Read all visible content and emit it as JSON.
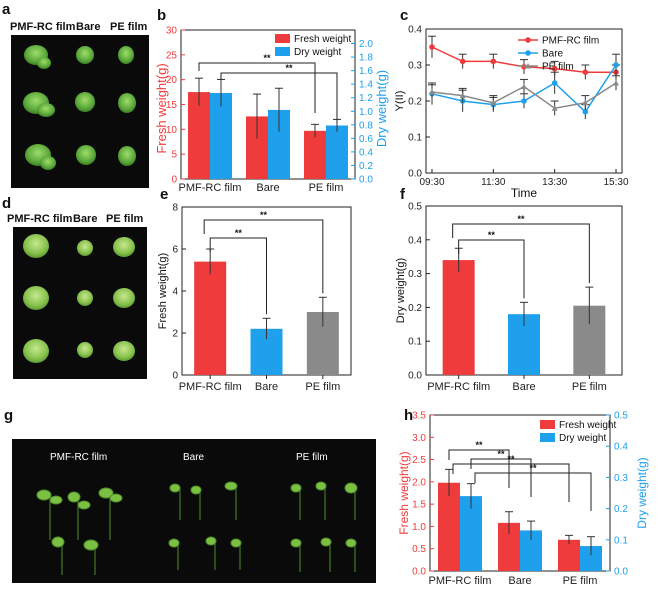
{
  "panels": {
    "a": {
      "letter": "a",
      "labels": [
        "PMF-RC film",
        "Bare",
        "PE film"
      ]
    },
    "d": {
      "letter": "d",
      "labels": [
        "PMF-RC film",
        "Bare",
        "PE film"
      ]
    },
    "g": {
      "letter": "g",
      "labels": [
        "PMF-RC film",
        "Bare",
        "PE film"
      ]
    }
  },
  "colors": {
    "red": "#ef3b3b",
    "blue": "#1ea0ec",
    "gray": "#8a8a8a",
    "axis_blue": "#1ea0ec",
    "axis_red": "#ef3b3b"
  },
  "chart_data": [
    {
      "panel": "b",
      "type": "bar",
      "categories": [
        "PMF-RC film",
        "Bare",
        "PE film"
      ],
      "ylabel": "Fresh weight(g)",
      "y2label": "Dry weight(g)",
      "ylim": [
        0,
        30
      ],
      "y2lim": [
        0,
        2.2
      ],
      "yticks": [
        "0",
        "5",
        "10",
        "15",
        "20",
        "25",
        "30"
      ],
      "y2ticks": [
        "0.0",
        "0.2",
        "0.4",
        "0.6",
        "0.8",
        "1.0",
        "1.2",
        "1.4",
        "1.6",
        "1.8",
        "2.0"
      ],
      "series": [
        {
          "name": "Fresh weight",
          "axis": "left",
          "values": [
            17.5,
            12.6,
            9.7
          ],
          "errors": [
            2.8,
            4.5,
            1.3
          ]
        },
        {
          "name": "Dry weight",
          "axis": "right",
          "values": [
            1.27,
            1.02,
            0.79
          ],
          "errors": [
            0.2,
            0.32,
            0.09
          ]
        }
      ],
      "significance": [
        {
          "from": 0,
          "to": 2,
          "label": "**"
        },
        {
          "from": 0,
          "to": 2,
          "label": "**"
        }
      ]
    },
    {
      "panel": "c",
      "type": "line",
      "x": [
        "09:30",
        "10:30",
        "11:30",
        "12:30",
        "13:30",
        "14:30",
        "15:30"
      ],
      "xticks": [
        "09:30",
        "11:30",
        "13:30",
        "15:30"
      ],
      "xlabel": "Time",
      "ylabel": "Y(II)",
      "ylim": [
        0,
        0.4
      ],
      "yticks": [
        "0.0",
        "0.1",
        "0.2",
        "0.3",
        "0.4"
      ],
      "series": [
        {
          "name": "PMF-RC film",
          "color": "#ef3b3b",
          "values": [
            0.35,
            0.31,
            0.31,
            0.295,
            0.29,
            0.28,
            0.28
          ],
          "errors": [
            0.03,
            0.02,
            0.02,
            0.02,
            0.02,
            0.02,
            0.02
          ]
        },
        {
          "name": "Bare",
          "color": "#1ea0ec",
          "values": [
            0.22,
            0.2,
            0.19,
            0.2,
            0.25,
            0.17,
            0.3
          ],
          "errors": [
            0.03,
            0.03,
            0.02,
            0.02,
            0.03,
            0.02,
            0.03
          ]
        },
        {
          "name": "PE film",
          "color": "#8a8a8a",
          "values": [
            0.225,
            0.215,
            0.195,
            0.24,
            0.18,
            0.195,
            0.25
          ],
          "errors": [
            0.02,
            0.02,
            0.02,
            0.02,
            0.02,
            0.02,
            0.02
          ]
        }
      ]
    },
    {
      "panel": "e",
      "type": "bar",
      "categories": [
        "PMF-RC film",
        "Bare",
        "PE film"
      ],
      "ylabel": "Fresh weight(g)",
      "ylim": [
        0,
        8
      ],
      "yticks": [
        "0",
        "2",
        "4",
        "6",
        "8"
      ],
      "series": [
        {
          "name": "Fresh weight",
          "values": [
            5.4,
            2.2,
            3.0
          ],
          "errors": [
            0.6,
            0.5,
            0.7
          ],
          "colors": [
            "#ef3b3b",
            "#1ea0ec",
            "#8a8a8a"
          ]
        }
      ],
      "significance": [
        {
          "from": 0,
          "to": 1,
          "label": "**"
        },
        {
          "from": 0,
          "to": 2,
          "label": "**"
        }
      ]
    },
    {
      "panel": "f",
      "type": "bar",
      "categories": [
        "PMF-RC film",
        "Bare",
        "PE film"
      ],
      "ylabel": "Dry weight(g)",
      "ylim": [
        0,
        0.5
      ],
      "yticks": [
        "0.0",
        "0.1",
        "0.2",
        "0.3",
        "0.4",
        "0.5"
      ],
      "series": [
        {
          "name": "Dry weight",
          "values": [
            0.34,
            0.18,
            0.205
          ],
          "errors": [
            0.035,
            0.035,
            0.055
          ],
          "colors": [
            "#ef3b3b",
            "#1ea0ec",
            "#8a8a8a"
          ]
        }
      ],
      "significance": [
        {
          "from": 0,
          "to": 1,
          "label": "**"
        },
        {
          "from": 0,
          "to": 2,
          "label": "**"
        }
      ]
    },
    {
      "panel": "h",
      "type": "bar",
      "categories": [
        "PMF-RC film",
        "Bare",
        "PE film"
      ],
      "ylabel": "Fresh weight(g)",
      "y2label": "Dry weight(g)",
      "ylim": [
        0,
        3.5
      ],
      "y2lim": [
        0,
        0.5
      ],
      "yticks": [
        "0.0",
        "0.5",
        "1.0",
        "1.5",
        "2.0",
        "2.5",
        "3.0",
        "3.5"
      ],
      "y2ticks": [
        "0.0",
        "0.1",
        "0.2",
        "0.3",
        "0.4",
        "0.5"
      ],
      "series": [
        {
          "name": "Fresh weight",
          "axis": "left",
          "values": [
            1.98,
            1.08,
            0.7
          ],
          "errors": [
            0.3,
            0.25,
            0.1
          ]
        },
        {
          "name": "Dry weight",
          "axis": "right",
          "values": [
            0.24,
            0.13,
            0.08
          ],
          "errors": [
            0.04,
            0.03,
            0.03
          ]
        }
      ],
      "significance": [
        {
          "from": 0,
          "to": 1,
          "label": "**"
        },
        {
          "from": 0,
          "to": 1,
          "label": "**"
        },
        {
          "from": 0,
          "to": 2,
          "label": "**"
        },
        {
          "from": 0,
          "to": 2,
          "label": "**"
        }
      ]
    }
  ]
}
